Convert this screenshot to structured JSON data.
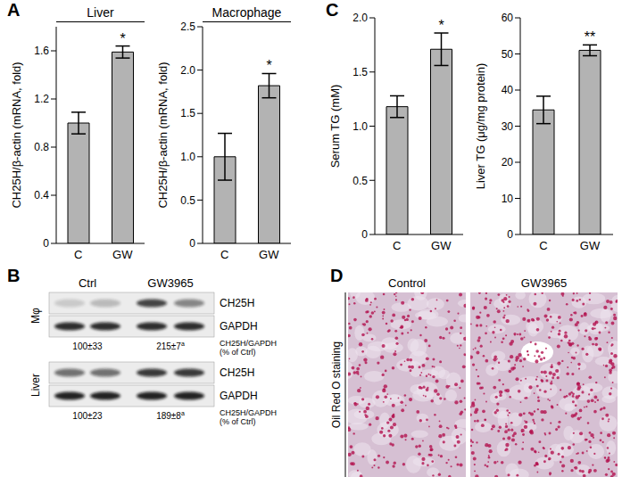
{
  "chart_data": [
    {
      "panel": "A",
      "type": "bar",
      "title": "Liver",
      "ylabel": "CH25H/β-actin (mRNA, fold)",
      "categories": [
        "C",
        "GW"
      ],
      "values": [
        1.0,
        1.59
      ],
      "errors": [
        0.09,
        0.05
      ],
      "significance": [
        null,
        "*"
      ],
      "color": "#b3b3b3",
      "ylim": [
        0,
        1.8
      ],
      "yticks": [
        0,
        0.4,
        0.8,
        1.2,
        1.6
      ]
    },
    {
      "type": "bar",
      "title": "Macrophage",
      "ylabel": "CH25H/β-actin (mRNA, fold)",
      "categories": [
        "C",
        "GW"
      ],
      "values": [
        1.0,
        1.82
      ],
      "errors": [
        0.27,
        0.14
      ],
      "significance": [
        null,
        "*"
      ],
      "color": "#b3b3b3",
      "ylim": [
        0,
        2.5
      ],
      "yticks": [
        0,
        0.5,
        {
          "value": 1,
          "label": "1.0"
        },
        1.5,
        {
          "value": 2,
          "label": "2.0"
        },
        2.5
      ]
    },
    {
      "panel": "C",
      "type": "bar",
      "ylabel": "Serum TG (mM)",
      "categories": [
        "C",
        "GW"
      ],
      "values": [
        1.18,
        1.71
      ],
      "errors": [
        0.1,
        0.15
      ],
      "significance": [
        null,
        "*"
      ],
      "color": "#b3b3b3",
      "ylim": [
        0,
        2
      ],
      "yticks": [
        0,
        0.5,
        {
          "value": 1,
          "label": "1.0"
        },
        1.5,
        {
          "value": 2,
          "label": "2.0"
        }
      ]
    },
    {
      "type": "bar",
      "ylabel": "Liver TG (μg/mg protein)",
      "categories": [
        "C",
        "GW"
      ],
      "values": [
        34.5,
        51
      ],
      "errors": [
        3.8,
        1.5
      ],
      "significance": [
        null,
        "**"
      ],
      "color": "#b3b3b3",
      "ylim": [
        0,
        60
      ],
      "yticks": [
        0,
        10,
        20,
        30,
        40,
        50,
        60
      ]
    }
  ],
  "blot": {
    "panel": "B",
    "groups": [
      "Ctrl",
      "GW3965"
    ],
    "quant_label": "CH25H/GAPDH (% of Ctrl)",
    "sections": [
      {
        "tissue": "Mφ",
        "bands": [
          "CH25H",
          "GAPDH"
        ],
        "quant": [
          "100±33",
          "215±7"
        ],
        "quant_marks": [
          null,
          "a"
        ]
      },
      {
        "tissue": "Liver",
        "bands": [
          "CH25H",
          "GAPDH"
        ],
        "quant": [
          "100±23",
          "189±8"
        ],
        "quant_marks": [
          null,
          "a"
        ]
      }
    ]
  },
  "staining": {
    "panel": "D",
    "label": "Oil Red O staining",
    "columns": [
      "Control",
      "GW3965"
    ]
  }
}
